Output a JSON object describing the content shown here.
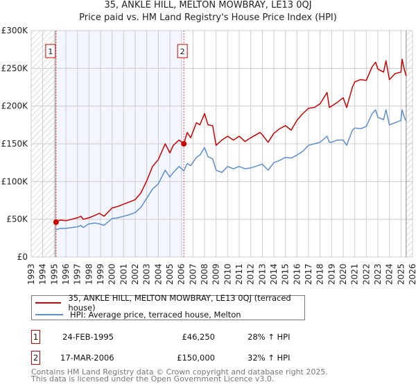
{
  "title": "35, ANKLE HILL, MELTON MOWBRAY, LE13 0QJ",
  "subtitle": "Price paid vs. HM Land Registry's House Price Index (HPI)",
  "legend": {
    "red_label": "35, ANKLE HILL, MELTON MOWBRAY, LE13 0QJ (terraced house)",
    "blue_label": "HPI: Average price, terraced house, Melton"
  },
  "sales": [
    {
      "num": "1",
      "date": "24-FEB-1995",
      "price": "£46,250",
      "hpi": "28% ↑ HPI",
      "year": 1995.15,
      "value": 46.25
    },
    {
      "num": "2",
      "date": "17-MAR-2006",
      "price": "£150,000",
      "hpi": "32% ↑ HPI",
      "year": 2006.21,
      "value": 150
    }
  ],
  "footer": {
    "line1": "Contains HM Land Registry data © Crown copyright and database right 2025.",
    "line2": "This data is licensed under the Open Government Licence v3.0."
  },
  "colors": {
    "red": "#cc0000",
    "blue": "#5b8fd0",
    "shade": "#f3f6fe"
  },
  "chart_data": {
    "type": "line",
    "title": "35, ANKLE HILL, MELTON MOWBRAY, LE13 0QJ",
    "subtitle": "Price paid vs. HM Land Registry's House Price Index (HPI)",
    "xlabel": "",
    "ylabel": "",
    "xlim": [
      1993,
      2026
    ],
    "ylim": [
      0,
      300
    ],
    "yticks": [
      0,
      50,
      100,
      150,
      200,
      250,
      300
    ],
    "ytick_labels": [
      "£0",
      "£50K",
      "£100K",
      "£150K",
      "£200K",
      "£250K",
      "£300K"
    ],
    "xticks": [
      1993,
      1994,
      1995,
      1996,
      1997,
      1998,
      1999,
      2000,
      2001,
      2002,
      2003,
      2004,
      2005,
      2006,
      2007,
      2008,
      2009,
      2010,
      2011,
      2012,
      2013,
      2014,
      2015,
      2016,
      2017,
      2018,
      2019,
      2020,
      2021,
      2022,
      2023,
      2024,
      2025,
      2026
    ],
    "grid": true,
    "legend_position": "bottom",
    "shaded_period": [
      1995.15,
      2006.21
    ],
    "hatched_periods": [
      [
        1993,
        1995.15
      ],
      [
        2025.45,
        2026
      ]
    ],
    "x": [
      1995.15,
      1995.5,
      1996,
      1996.5,
      1997,
      1997.3,
      1997.5,
      1998,
      1998.5,
      1998.9,
      1999.3,
      2000,
      2000.5,
      2001,
      2001.5,
      2002,
      2002.5,
      2003,
      2003.5,
      2004,
      2004.6,
      2005,
      2005.3,
      2005.8,
      2006.21,
      2006.5,
      2006.8,
      2007.3,
      2007.6,
      2008,
      2008.3,
      2008.7,
      2009,
      2009.5,
      2010,
      2010.5,
      2011,
      2011.5,
      2012,
      2012.8,
      2013,
      2013.5,
      2014,
      2014.5,
      2015,
      2015.5,
      2016,
      2016.5,
      2017,
      2017.5,
      2018,
      2018.6,
      2018.8,
      2019,
      2019.5,
      2020,
      2020.3,
      2020.8,
      2021,
      2021.5,
      2022,
      2022.5,
      2022.8,
      2023,
      2023.5,
      2023.7,
      2024,
      2024.5,
      2025,
      2025.1,
      2025.3,
      2025.45
    ],
    "series": [
      {
        "name": "35, ANKLE HILL, MELTON MOWBRAY, LE13 0QJ (terraced house)",
        "color": "#cc0000",
        "values": [
          46.25,
          49,
          48,
          50,
          52,
          54,
          50,
          52,
          55,
          58,
          54,
          65,
          67,
          70,
          73,
          76,
          85,
          101,
          120,
          129,
          150,
          138,
          148,
          155,
          150,
          165,
          158,
          178,
          175,
          190,
          175,
          174,
          148,
          155,
          160,
          155,
          160,
          153,
          158,
          165,
          162,
          152,
          164,
          170,
          174,
          168,
          181,
          190,
          197,
          198,
          203,
          218,
          198,
          200,
          205,
          211,
          198,
          225,
          232,
          235,
          234,
          252,
          258,
          249,
          245,
          260,
          235,
          243,
          245,
          262,
          248,
          240
        ]
      },
      {
        "name": "HPI: Average price, terraced house, Melton",
        "color": "#5b8fd0",
        "values": [
          36,
          38,
          38,
          39,
          40,
          42,
          39,
          44,
          45,
          44,
          42,
          51,
          52,
          54,
          56,
          59,
          66,
          78,
          90,
          97,
          115,
          106,
          112,
          120,
          114,
          124,
          121,
          132,
          135,
          145,
          133,
          130,
          115,
          112,
          120,
          117,
          120,
          117,
          118,
          122,
          123,
          115,
          125,
          128,
          132,
          131,
          135,
          140,
          148,
          150,
          152,
          160,
          152,
          152,
          155,
          155,
          148,
          168,
          171,
          170,
          173,
          190,
          195,
          185,
          182,
          195,
          175,
          178,
          181,
          195,
          185,
          180
        ]
      }
    ]
  }
}
